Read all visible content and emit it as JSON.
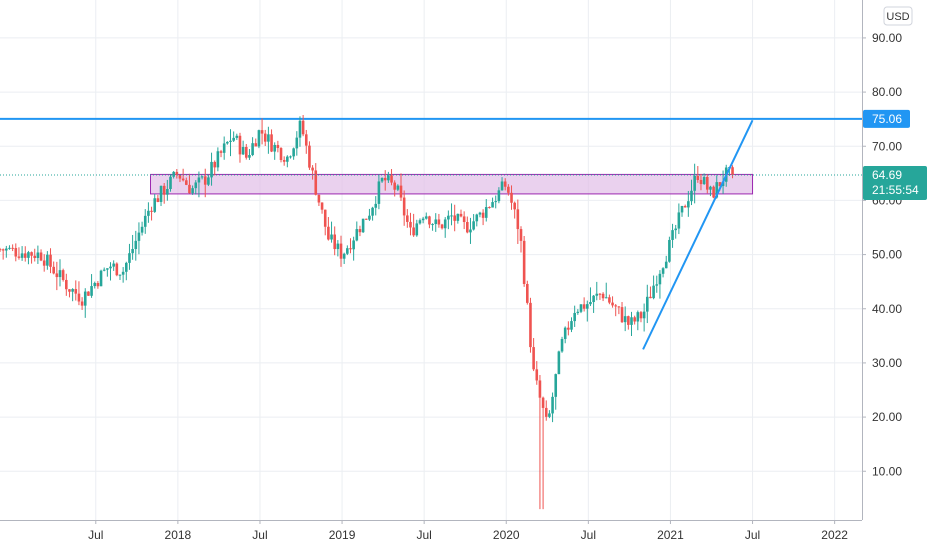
{
  "chart_data": {
    "type": "candlestick",
    "currency_button": "USD",
    "y_axis": {
      "ticks": [
        10,
        20,
        30,
        40,
        50,
        60,
        70,
        80,
        90
      ],
      "tick_labels": [
        "10.00",
        "20.00",
        "30.00",
        "40.00",
        "50.00",
        "60.00",
        "70.00",
        "80.00",
        "90.00"
      ],
      "ylim": [
        1,
        97
      ]
    },
    "x_axis": {
      "tick_labels": [
        "Jul",
        "2018",
        "Jul",
        "2019",
        "Jul",
        "2020",
        "Jul",
        "2021",
        "Jul",
        "2022"
      ],
      "tick_dates": [
        "2017-07",
        "2018-01",
        "2018-07",
        "2019-01",
        "2019-07",
        "2020-01",
        "2020-07",
        "2021-01",
        "2021-07",
        "2022-01"
      ],
      "range": [
        "2016-12",
        "2022-03"
      ]
    },
    "last_price": {
      "value": "64.69",
      "countdown": "21:55:54",
      "color": "#26a69a"
    },
    "horizontal_line": {
      "value": 75.06,
      "label": "75.06",
      "color": "#2196f3"
    },
    "zone": {
      "from": "2017-11",
      "to": "2021-07",
      "low": 61.2,
      "high": 64.8,
      "fill": "#e1bee7",
      "stroke": "#9c27b0"
    },
    "trendline": {
      "from": {
        "date": "2020-11",
        "value": 32.5
      },
      "to": {
        "date": "2021-07",
        "value": 74.8
      },
      "color": "#2196f3"
    },
    "up_color": "#26a69a",
    "down_color": "#ef5350",
    "price_path": [
      [
        "2016-12",
        51
      ],
      [
        "2017-03",
        50
      ],
      [
        "2017-05",
        44
      ],
      [
        "2017-06",
        42
      ],
      [
        "2017-07",
        45
      ],
      [
        "2017-08",
        48
      ],
      [
        "2017-09",
        47
      ],
      [
        "2017-10",
        53
      ],
      [
        "2017-11",
        59
      ],
      [
        "2017-12",
        62
      ],
      [
        "2018-01",
        65
      ],
      [
        "2018-02",
        62
      ],
      [
        "2018-03",
        64
      ],
      [
        "2018-04",
        68
      ],
      [
        "2018-05",
        72
      ],
      [
        "2018-06",
        68
      ],
      [
        "2018-07",
        73
      ],
      [
        "2018-08",
        70
      ],
      [
        "2018-09",
        68
      ],
      [
        "2018-10",
        74
      ],
      [
        "2018-11",
        63
      ],
      [
        "2018-12",
        53
      ],
      [
        "2019-01",
        50
      ],
      [
        "2019-02",
        54
      ],
      [
        "2019-03",
        58
      ],
      [
        "2019-04",
        64
      ],
      [
        "2019-05",
        62
      ],
      [
        "2019-06",
        54
      ],
      [
        "2019-07",
        58
      ],
      [
        "2019-08",
        55
      ],
      [
        "2019-09",
        57
      ],
      [
        "2019-10",
        55
      ],
      [
        "2019-11",
        57
      ],
      [
        "2019-12",
        60
      ],
      [
        "2020-01",
        63
      ],
      [
        "2020-02",
        54
      ],
      [
        "2020-03",
        28
      ],
      [
        "2020-04",
        18
      ],
      [
        "2020-05",
        33
      ],
      [
        "2020-06",
        40
      ],
      [
        "2020-07",
        41
      ],
      [
        "2020-08",
        43
      ],
      [
        "2020-09",
        40
      ],
      [
        "2020-10",
        37
      ],
      [
        "2020-11",
        39
      ],
      [
        "2020-12",
        46
      ],
      [
        "2021-01",
        52
      ],
      [
        "2021-02",
        59
      ],
      [
        "2021-03",
        65
      ],
      [
        "2021-04",
        61
      ],
      [
        "2021-05",
        64.69
      ]
    ]
  }
}
